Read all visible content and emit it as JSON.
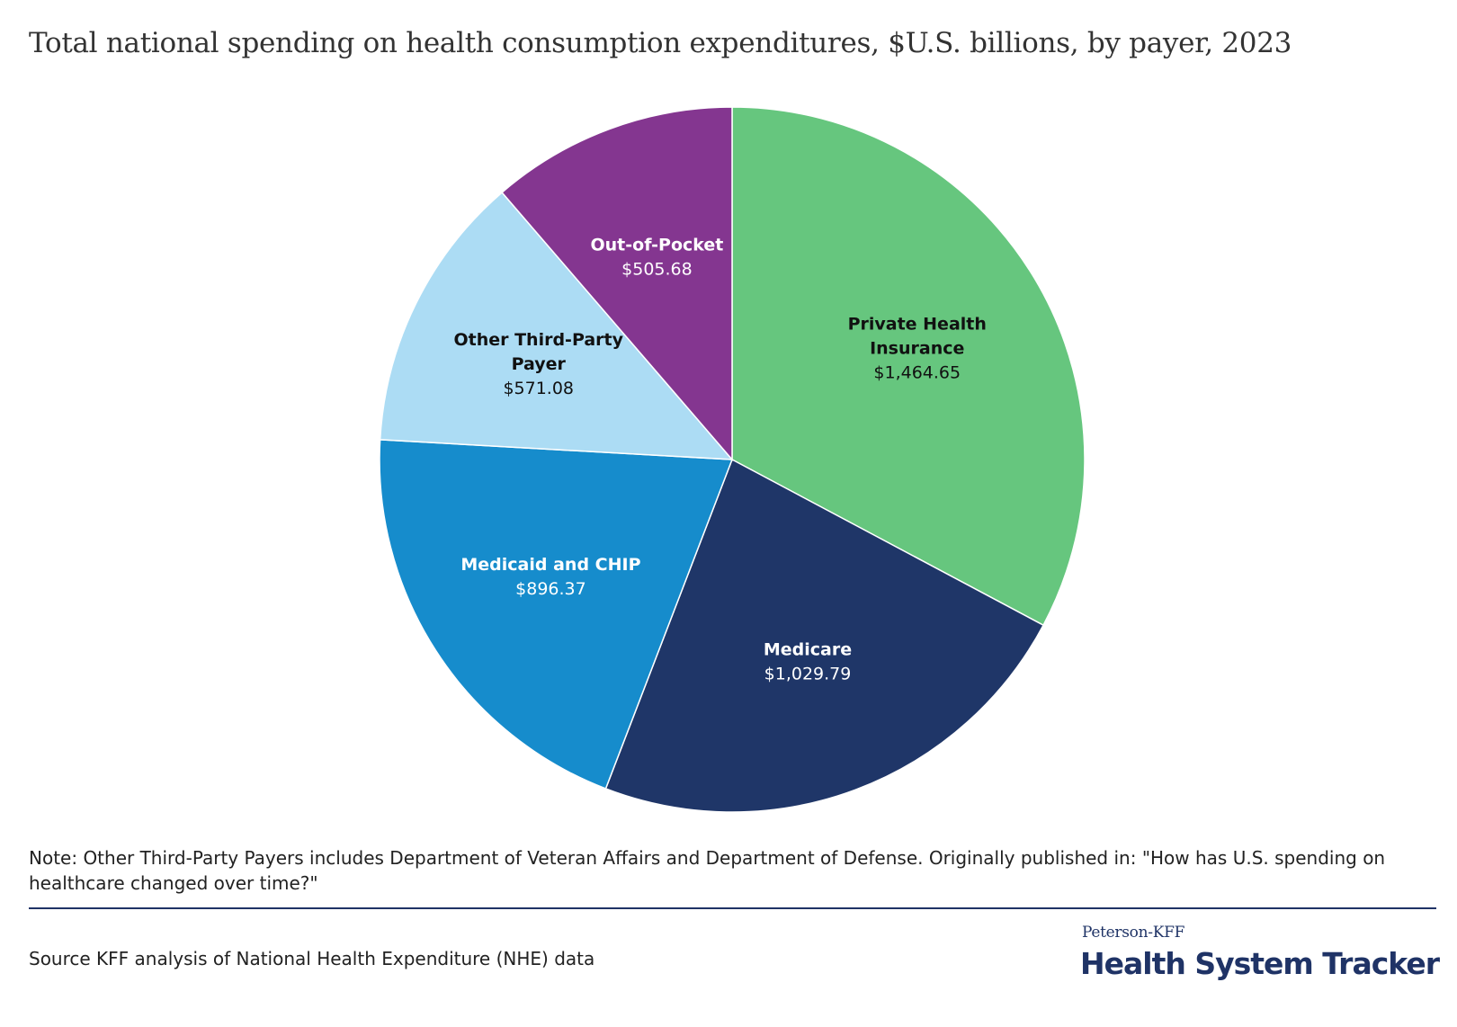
{
  "title": "Total national spending on health consumption expenditures, $U.S. billions, by payer, 2023",
  "note": "Note: Other Third-Party Payers includes Department of Veteran Affairs and Department of Defense. Originally published in: \"How has U.S. spending on healthcare changed over time?\"",
  "source": "Source KFF analysis of National Health Expenditure (NHE) data",
  "brand": {
    "top": "Peterson-KFF",
    "main": "Health System Tracker",
    "color": "#1f3366"
  },
  "chart_data": {
    "type": "pie",
    "title": "Total national spending on health consumption expenditures, $U.S. billions, by payer, 2023",
    "unit": "$U.S. billions",
    "slices": [
      {
        "label_lines": [
          "Private Health",
          "Insurance"
        ],
        "value_label": "$1,464.65",
        "value": 1464.65,
        "color": "#66c67e",
        "text_color": "#111111"
      },
      {
        "label_lines": [
          "Medicare"
        ],
        "value_label": "$1,029.79",
        "value": 1029.79,
        "color": "#1f3668",
        "text_color": "#ffffff"
      },
      {
        "label_lines": [
          "Medicaid and CHIP"
        ],
        "value_label": "$896.37",
        "value": 896.37,
        "color": "#168ccc",
        "text_color": "#ffffff"
      },
      {
        "label_lines": [
          "Other Third-Party",
          "Payer"
        ],
        "value_label": "$571.08",
        "value": 571.08,
        "color": "#acdcf4",
        "text_color": "#111111"
      },
      {
        "label_lines": [
          "Out-of-Pocket"
        ],
        "value_label": "$505.68",
        "value": 505.68,
        "color": "#843690",
        "text_color": "#ffffff"
      }
    ]
  }
}
